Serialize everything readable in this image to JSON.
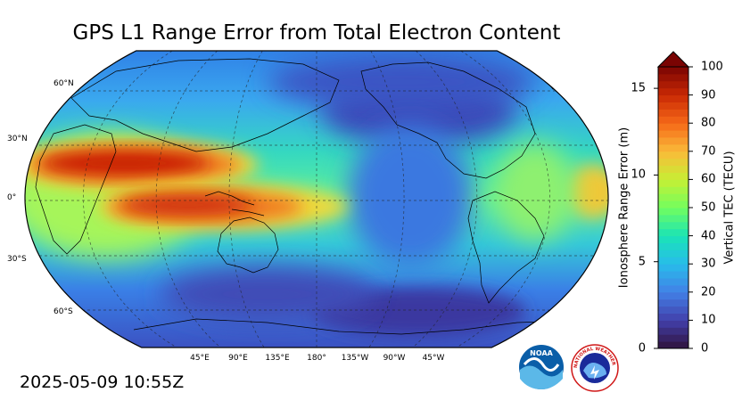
{
  "title": "GPS L1 Range Error from Total Electron Content",
  "timestamp": "2025-05-09 10:55Z",
  "map": {
    "lat_labels": [
      "60°N",
      "30°N",
      "0°",
      "30°S",
      "60°S"
    ],
    "lon_labels": [
      "45°E",
      "90°E",
      "135°E",
      "180°",
      "135°W",
      "90°W",
      "45°W"
    ]
  },
  "colorbar": {
    "left_title": "Ionosphere Range Error (m)",
    "right_title": "Vertical TEC (TECU)",
    "left_ticks": [
      "0",
      "5",
      "10",
      "15"
    ],
    "right_ticks": [
      "0",
      "10",
      "20",
      "30",
      "40",
      "50",
      "60",
      "70",
      "80",
      "90",
      "100"
    ],
    "tecu_min": 0,
    "tecu_max": 100,
    "range_error_m_at_tecu_max": 16.24,
    "extend": "max"
  },
  "logos": {
    "noaa_text": "NOAA",
    "nws_text": "NATIONAL WEATHER SERVICE"
  },
  "colors": {
    "ocean_low": "#3a3b9c",
    "mid": "#3fa8f0",
    "high": "#c81a06"
  }
}
